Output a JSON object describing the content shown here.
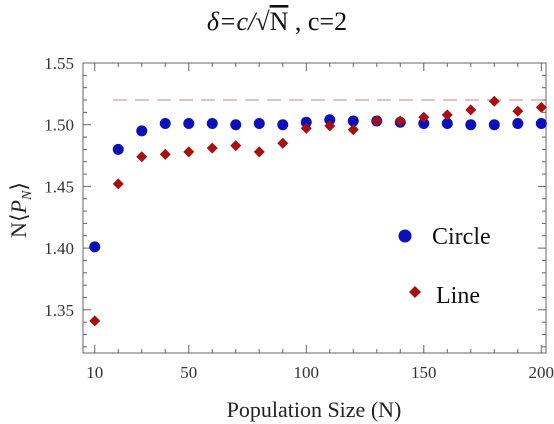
{
  "chart_data": {
    "type": "scatter",
    "title": "δ=c/√N , c=2",
    "title_parts": {
      "lhs": "δ=c/",
      "radical": "√",
      "radicand": "N",
      "rhs": " , c=2"
    },
    "xlabel": "Population Size (N)",
    "ylabel": {
      "prefix": "N",
      "open": "⟨",
      "var": "P",
      "sub": "N",
      "close": "⟩"
    },
    "xlim": [
      5,
      202
    ],
    "ylim": [
      1.315,
      1.55
    ],
    "x_ticks": [
      10,
      50,
      100,
      150,
      200
    ],
    "y_ticks": [
      1.35,
      1.4,
      1.45,
      1.5,
      1.55
    ],
    "y_tick_labels": [
      "1.35",
      "1.40",
      "1.45",
      "1.50",
      "1.55"
    ],
    "reference_line": {
      "y": 1.52,
      "style": "dashed",
      "color": "#d08080"
    },
    "legend_position": "right-middle",
    "series": [
      {
        "name": "Circle",
        "marker": "circle",
        "color": "#0c10b8",
        "x": [
          10,
          20,
          30,
          40,
          50,
          60,
          70,
          80,
          90,
          100,
          110,
          120,
          130,
          140,
          150,
          160,
          170,
          180,
          190,
          200
        ],
        "y": [
          1.401,
          1.48,
          1.495,
          1.501,
          1.501,
          1.501,
          1.5,
          1.501,
          1.5,
          1.502,
          1.504,
          1.503,
          1.503,
          1.502,
          1.501,
          1.501,
          1.5,
          1.5,
          1.501,
          1.501
        ]
      },
      {
        "name": "Line",
        "marker": "diamond",
        "color": "#a81010",
        "x": [
          10,
          20,
          30,
          40,
          50,
          60,
          70,
          80,
          90,
          100,
          110,
          120,
          130,
          140,
          150,
          160,
          170,
          180,
          190,
          200
        ],
        "y": [
          1.341,
          1.452,
          1.474,
          1.476,
          1.478,
          1.481,
          1.483,
          1.478,
          1.485,
          1.497,
          1.499,
          1.496,
          1.503,
          1.503,
          1.506,
          1.508,
          1.512,
          1.519,
          1.511,
          1.514
        ]
      }
    ]
  }
}
